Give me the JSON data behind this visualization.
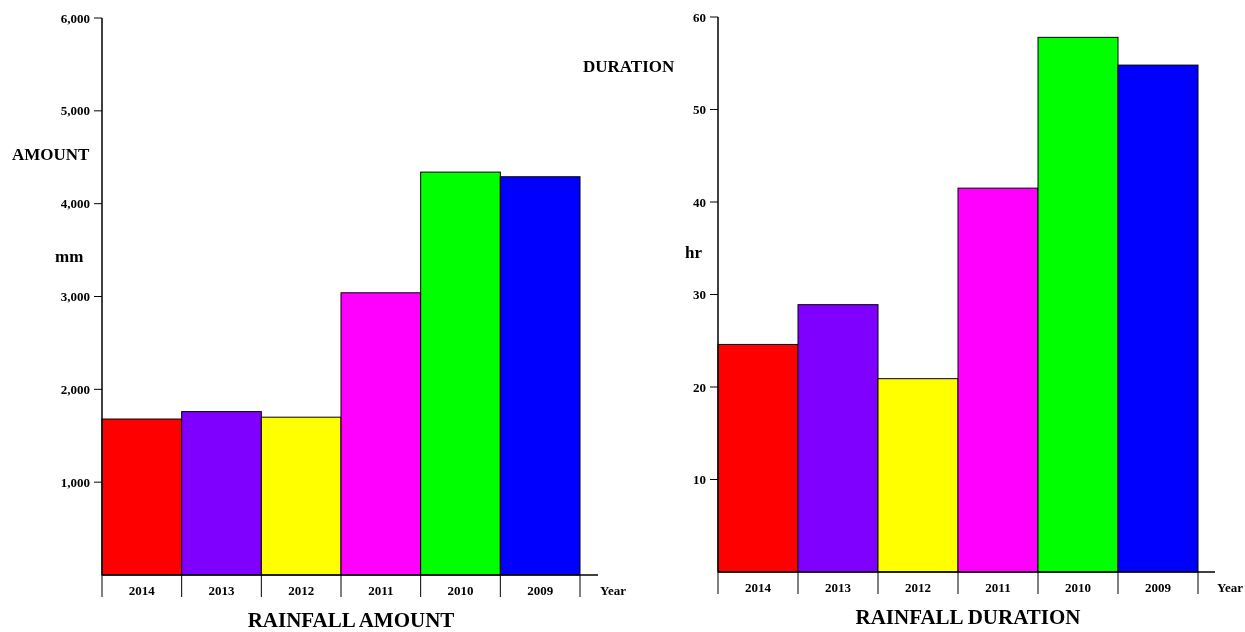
{
  "chart_data": [
    {
      "type": "bar",
      "title": "RAINFALL AMOUNT",
      "ylabel": "AMOUNT",
      "xlabel": "Year",
      "annotations": [
        "mm"
      ],
      "categories": [
        "2014",
        "2013",
        "2012",
        "2011",
        "2010",
        "2009"
      ],
      "values": [
        1680,
        1760,
        1700,
        3040,
        4340,
        4290
      ],
      "colors": [
        "#ff0000",
        "#7f00ff",
        "#ffff00",
        "#ff00ff",
        "#00ff00",
        "#0000ff"
      ],
      "ylim": [
        0,
        6000
      ],
      "yticks": [
        {
          "value": 1000,
          "label": "1,000"
        },
        {
          "value": 2000,
          "label": "2,000"
        },
        {
          "value": 3000,
          "label": "3,000"
        },
        {
          "value": 4000,
          "label": "4,000"
        },
        {
          "value": 5000,
          "label": "5,000"
        },
        {
          "value": 6000,
          "label": "6,000"
        }
      ]
    },
    {
      "type": "bar",
      "title": "RAINFALL DURATION",
      "ylabel": "DURATION",
      "xlabel": "Year",
      "annotations": [
        "hr"
      ],
      "categories": [
        "2014",
        "2013",
        "2012",
        "2011",
        "2010",
        "2009"
      ],
      "values": [
        24.6,
        28.9,
        20.9,
        41.5,
        57.8,
        54.8
      ],
      "colors": [
        "#ff0000",
        "#7f00ff",
        "#ffff00",
        "#ff00ff",
        "#00ff00",
        "#0000ff"
      ],
      "ylim": [
        0,
        60
      ],
      "yticks": [
        10,
        20,
        30,
        40,
        50,
        60
      ]
    }
  ]
}
